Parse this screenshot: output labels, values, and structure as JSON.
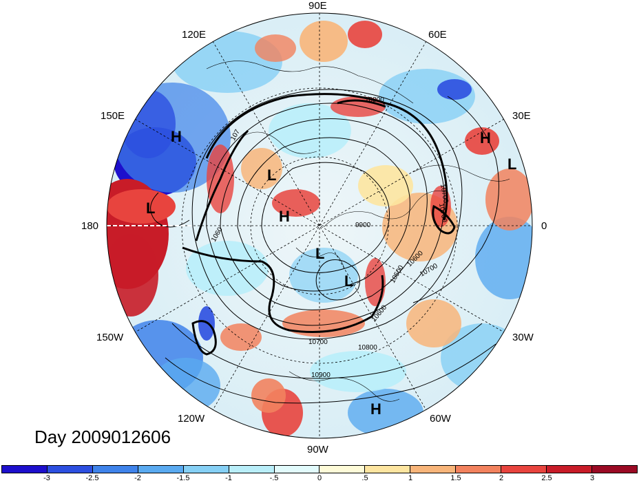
{
  "map": {
    "projection": "north polar stereographic",
    "longitude_labels": {
      "top": "90E",
      "top_left": "120E",
      "top_right": "60E",
      "upper_left": "150E",
      "upper_right": "30E",
      "left": "180",
      "right": "0",
      "lower_left": "150W",
      "lower_right": "30W",
      "bottom_left": "120W",
      "bottom_right": "60W",
      "bottom": "90W"
    },
    "pressure_centers": [
      "H",
      "H",
      "L",
      "L",
      "L",
      "H",
      "L",
      "L",
      "H",
      "H"
    ],
    "contour_labels": [
      "10800",
      "10700",
      "10700",
      "10600",
      "9900",
      "10700",
      "10500",
      "10600",
      "10700",
      "10800",
      "10900",
      "1060",
      "107"
    ],
    "shading_variable_colors": {
      "strong_negative": "#1a10c8",
      "negative": "#4a90e8",
      "neutral": "#e6f7fb",
      "positive": "#f0a080",
      "strong_positive": "#c01828"
    }
  },
  "title": {
    "day_label": "Day 2009012606"
  },
  "colorbar": {
    "colors": [
      "#1d0fcc",
      "#2c4fe0",
      "#3f83ea",
      "#5aaaf0",
      "#86d0f5",
      "#b9eef9",
      "#e2fbfc",
      "#fefbd8",
      "#fde5a0",
      "#f8b57a",
      "#f2825e",
      "#e8443e",
      "#c81c28",
      "#9a0a24"
    ],
    "tick_labels": [
      "-3",
      "-2.5",
      "-2",
      "-1.5",
      "-1",
      "-.5",
      "0",
      ".5",
      "1",
      "1.5",
      "2",
      "2.5",
      "3"
    ]
  }
}
